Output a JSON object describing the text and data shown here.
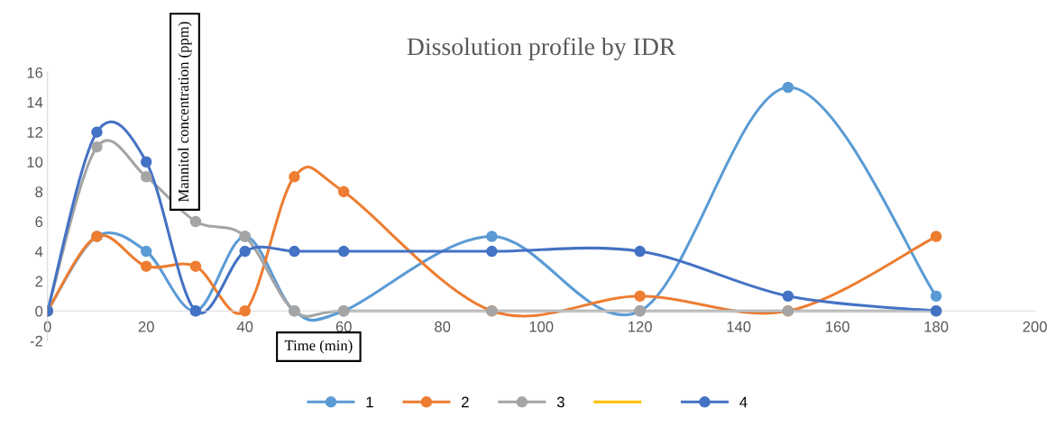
{
  "chart_data": {
    "type": "line",
    "title": "Dissolution profile by IDR",
    "xlabel": "Time (min)",
    "ylabel": "Mannitol concentration (ppm)",
    "x": [
      0,
      10,
      20,
      30,
      40,
      50,
      60,
      90,
      120,
      150,
      180
    ],
    "series": [
      {
        "name": "1",
        "color": "#5b9bd5",
        "values": [
          0,
          5,
          4,
          0,
          5,
          0,
          0,
          5,
          0,
          15,
          1
        ]
      },
      {
        "name": "2",
        "color": "#ed7d31",
        "values": [
          0,
          5,
          3,
          3,
          0,
          9,
          8,
          0,
          1,
          0,
          5
        ]
      },
      {
        "name": "3",
        "color": "#a5a5a5",
        "values": [
          0,
          11,
          9,
          6,
          5,
          0,
          0,
          0,
          0,
          0,
          0
        ]
      },
      {
        "color": "#ffc000",
        "marker": "none",
        "values": [
          null,
          null,
          null,
          null,
          null,
          null,
          null,
          null,
          null,
          null,
          null
        ]
      },
      {
        "name": "4",
        "color": "#4472c4",
        "values": [
          0,
          12,
          10,
          0,
          4,
          4,
          4,
          4,
          4,
          1,
          0
        ]
      }
    ],
    "xlim": [
      0,
      200
    ],
    "xticks": [
      0,
      20,
      40,
      60,
      80,
      100,
      120,
      140,
      160,
      180,
      200
    ],
    "ylim": [
      -2,
      16
    ],
    "yticks": [
      -2,
      0,
      2,
      4,
      6,
      8,
      10,
      12,
      14,
      16
    ],
    "grid": false,
    "legend": "bottom",
    "marker": "circle",
    "line_style": "solid"
  }
}
